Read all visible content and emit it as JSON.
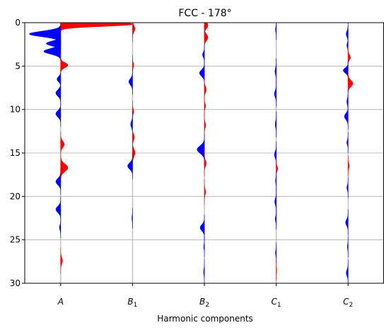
{
  "chart_data": {
    "type": "area",
    "title": "FCC - 178°",
    "xlabel": "Harmonic components",
    "ylabel": "",
    "ylim": [
      30,
      0
    ],
    "yticks": [
      0,
      5,
      10,
      15,
      20,
      25,
      30
    ],
    "ygrid": true,
    "colors": {
      "positive": "#ff0000",
      "negative": "#0000ff",
      "baseline": "#aaaaaa",
      "grid": "#b0b0b0"
    },
    "components": [
      {
        "name": "A",
        "base": "A",
        "sub": "",
        "lobes": [
          {
            "y": 0.2,
            "amp": 0.6,
            "width": 0.7,
            "skew": "up"
          },
          {
            "y": 1.3,
            "amp": -0.26,
            "width": 0.45
          },
          {
            "y": 2.4,
            "amp": -0.12,
            "width": 0.4
          },
          {
            "y": 3.3,
            "amp": -0.14,
            "width": 0.45
          },
          {
            "y": 4.9,
            "amp": 0.06,
            "width": 0.4
          },
          {
            "y": 6.5,
            "amp": -0.03,
            "width": 0.4
          },
          {
            "y": 8.1,
            "amp": -0.04,
            "width": 0.5
          },
          {
            "y": 10.5,
            "amp": -0.04,
            "width": 0.5
          },
          {
            "y": 14.0,
            "amp": 0.03,
            "width": 0.5
          },
          {
            "y": 16.7,
            "amp": 0.06,
            "width": 0.6
          },
          {
            "y": 18.3,
            "amp": -0.04,
            "width": 0.5
          },
          {
            "y": 21.5,
            "amp": -0.04,
            "width": 0.5
          },
          {
            "y": 23.6,
            "amp": -0.01,
            "width": 0.4
          },
          {
            "y": 27.4,
            "amp": 0.015,
            "width": 0.5
          }
        ]
      },
      {
        "name": "B1",
        "base": "B",
        "sub": "1",
        "lobes": [
          {
            "y": 0.7,
            "amp": 0.02,
            "width": 0.5
          },
          {
            "y": 4.9,
            "amp": 0.01,
            "width": 0.4
          },
          {
            "y": 6.8,
            "amp": -0.03,
            "width": 0.5
          },
          {
            "y": 10.2,
            "amp": 0.01,
            "width": 0.4
          },
          {
            "y": 11.7,
            "amp": -0.015,
            "width": 0.5
          },
          {
            "y": 13.2,
            "amp": 0.015,
            "width": 0.5
          },
          {
            "y": 15.0,
            "amp": 0.02,
            "width": 0.6
          },
          {
            "y": 16.5,
            "amp": -0.04,
            "width": 0.5
          },
          {
            "y": 22.5,
            "amp": -0.005,
            "width": 0.4
          }
        ]
      },
      {
        "name": "B2",
        "base": "B",
        "sub": "2",
        "lobes": [
          {
            "y": 0.3,
            "amp": 0.03,
            "width": 0.5
          },
          {
            "y": 1.7,
            "amp": 0.03,
            "width": 0.5
          },
          {
            "y": 3.7,
            "amp": -0.015,
            "width": 0.4
          },
          {
            "y": 5.8,
            "amp": -0.04,
            "width": 0.5
          },
          {
            "y": 7.7,
            "amp": 0.015,
            "width": 0.5
          },
          {
            "y": 9.6,
            "amp": 0.01,
            "width": 0.4
          },
          {
            "y": 11.8,
            "amp": 0.01,
            "width": 0.5
          },
          {
            "y": 14.6,
            "amp": -0.06,
            "width": 0.6
          },
          {
            "y": 16.2,
            "amp": 0.015,
            "width": 0.5
          },
          {
            "y": 19.5,
            "amp": 0.01,
            "width": 0.5
          },
          {
            "y": 23.6,
            "amp": -0.035,
            "width": 0.5
          },
          {
            "y": 25.8,
            "amp": -0.005,
            "width": 0.4
          },
          {
            "y": 28.7,
            "amp": -0.006,
            "width": 0.5
          }
        ]
      },
      {
        "name": "C1",
        "base": "C",
        "sub": "1",
        "lobes": [
          {
            "y": 0.8,
            "amp": -0.006,
            "width": 0.4
          },
          {
            "y": 5.6,
            "amp": -0.01,
            "width": 0.5
          },
          {
            "y": 8.2,
            "amp": -0.015,
            "width": 0.5
          },
          {
            "y": 11.7,
            "amp": -0.008,
            "width": 0.5
          },
          {
            "y": 15.2,
            "amp": -0.015,
            "width": 0.5
          },
          {
            "y": 16.8,
            "amp": 0.012,
            "width": 0.4
          },
          {
            "y": 18.2,
            "amp": -0.006,
            "width": 0.4
          },
          {
            "y": 20.6,
            "amp": -0.012,
            "width": 0.5
          },
          {
            "y": 22.6,
            "amp": -0.008,
            "width": 0.4
          },
          {
            "y": 26.5,
            "amp": -0.006,
            "width": 0.4
          },
          {
            "y": 28.5,
            "amp": 0.004,
            "width": 0.4
          }
        ]
      },
      {
        "name": "C2",
        "base": "C",
        "sub": "2",
        "lobes": [
          {
            "y": 1.3,
            "amp": -0.015,
            "width": 0.5
          },
          {
            "y": 2.6,
            "amp": -0.01,
            "width": 0.4
          },
          {
            "y": 4.0,
            "amp": 0.02,
            "width": 0.4
          },
          {
            "y": 5.5,
            "amp": -0.04,
            "width": 0.4
          },
          {
            "y": 7.0,
            "amp": 0.04,
            "width": 0.5
          },
          {
            "y": 9.1,
            "amp": -0.01,
            "width": 0.5
          },
          {
            "y": 10.8,
            "amp": -0.03,
            "width": 0.5
          },
          {
            "y": 13.8,
            "amp": -0.01,
            "width": 0.4
          },
          {
            "y": 16.5,
            "amp": 0.01,
            "width": 0.4
          },
          {
            "y": 19.0,
            "amp": -0.01,
            "width": 0.4
          },
          {
            "y": 23.0,
            "amp": -0.02,
            "width": 0.5
          },
          {
            "y": 25.8,
            "amp": -0.006,
            "width": 0.4
          },
          {
            "y": 28.8,
            "amp": -0.015,
            "width": 0.5
          }
        ]
      }
    ]
  }
}
